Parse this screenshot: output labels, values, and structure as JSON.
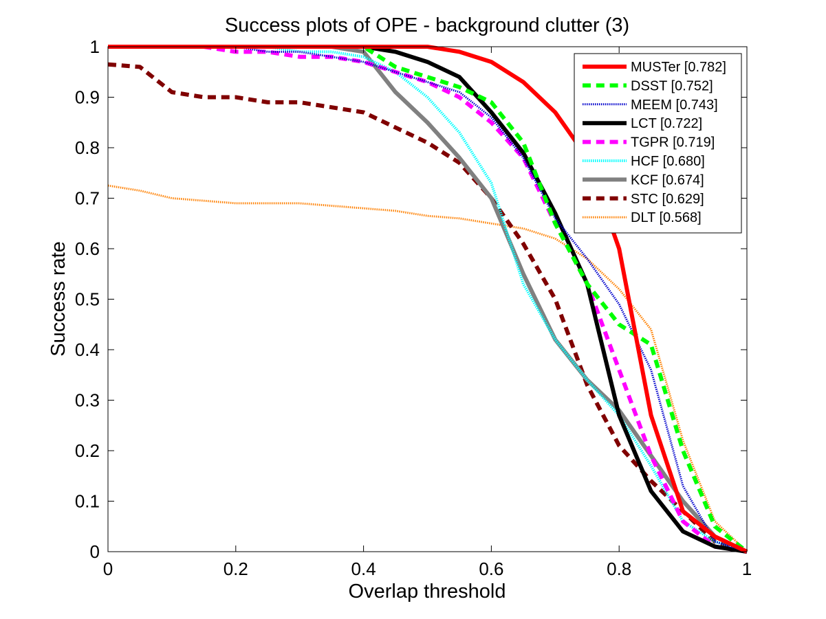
{
  "chart_data": {
    "type": "line",
    "title": "Success plots of OPE - background clutter (3)",
    "xlabel": "Overlap threshold",
    "ylabel": "Success rate",
    "xlim": [
      0,
      1
    ],
    "ylim": [
      0,
      1
    ],
    "grid": false,
    "legend_position": "top-right",
    "x": [
      0,
      0.05,
      0.1,
      0.15,
      0.2,
      0.25,
      0.3,
      0.35,
      0.4,
      0.45,
      0.5,
      0.55,
      0.6,
      0.65,
      0.7,
      0.75,
      0.8,
      0.85,
      0.9,
      0.95,
      1.0
    ],
    "x_ticks": [
      "0",
      "0.2",
      "0.4",
      "0.6",
      "0.8",
      "1"
    ],
    "y_ticks": [
      "0",
      "0.1",
      "0.2",
      "0.3",
      "0.4",
      "0.5",
      "0.6",
      "0.7",
      "0.8",
      "0.9",
      "1"
    ],
    "series": [
      {
        "name": "MUSTer [0.782]",
        "color": "#ff0000",
        "style": "solid",
        "width": 6,
        "values": [
          1.0,
          1.0,
          1.0,
          1.0,
          1.0,
          1.0,
          1.0,
          1.0,
          1.0,
          1.0,
          1.0,
          0.99,
          0.97,
          0.93,
          0.87,
          0.78,
          0.6,
          0.27,
          0.08,
          0.03,
          0.0
        ]
      },
      {
        "name": "DSST [0.752]",
        "color": "#00ff00",
        "style": "dashed",
        "width": 6,
        "values": [
          1.0,
          1.0,
          1.0,
          1.0,
          1.0,
          1.0,
          1.0,
          1.0,
          1.0,
          0.96,
          0.94,
          0.92,
          0.89,
          0.81,
          0.65,
          0.53,
          0.45,
          0.41,
          0.2,
          0.05,
          0.0
        ]
      },
      {
        "name": "MEEM [0.743]",
        "color": "#0000cc",
        "style": "dotted",
        "width": 3,
        "values": [
          1.0,
          1.0,
          1.0,
          1.0,
          1.0,
          0.99,
          0.99,
          0.98,
          0.97,
          0.95,
          0.93,
          0.91,
          0.86,
          0.78,
          0.66,
          0.58,
          0.49,
          0.36,
          0.13,
          0.02,
          0.0
        ]
      },
      {
        "name": "LCT [0.722]",
        "color": "#000000",
        "style": "solid",
        "width": 6,
        "values": [
          1.0,
          1.0,
          1.0,
          1.0,
          1.0,
          1.0,
          1.0,
          1.0,
          1.0,
          0.99,
          0.97,
          0.94,
          0.87,
          0.79,
          0.67,
          0.53,
          0.27,
          0.12,
          0.04,
          0.01,
          0.0
        ]
      },
      {
        "name": "TGPR [0.719]",
        "color": "#ff00ff",
        "style": "dashed",
        "width": 6,
        "values": [
          1.0,
          1.0,
          1.0,
          1.0,
          0.99,
          0.99,
          0.98,
          0.98,
          0.97,
          0.95,
          0.93,
          0.9,
          0.85,
          0.78,
          0.65,
          0.53,
          0.36,
          0.19,
          0.06,
          0.01,
          0.0
        ]
      },
      {
        "name": "HCF [0.680]",
        "color": "#00ffff",
        "style": "dotted",
        "width": 4,
        "values": [
          1.0,
          1.0,
          1.0,
          1.0,
          1.0,
          1.0,
          0.99,
          0.99,
          0.98,
          0.95,
          0.9,
          0.83,
          0.73,
          0.53,
          0.42,
          0.34,
          0.27,
          0.17,
          0.06,
          0.02,
          0.0
        ]
      },
      {
        "name": "KCF [0.674]",
        "color": "#808080",
        "style": "solid",
        "width": 6,
        "values": [
          1.0,
          1.0,
          1.0,
          1.0,
          1.0,
          1.0,
          1.0,
          1.0,
          0.99,
          0.91,
          0.85,
          0.78,
          0.7,
          0.55,
          0.42,
          0.34,
          0.28,
          0.19,
          0.1,
          0.03,
          0.0
        ]
      },
      {
        "name": "STC [0.629]",
        "color": "#800000",
        "style": "dashed",
        "width": 6,
        "values": [
          0.965,
          0.96,
          0.91,
          0.9,
          0.9,
          0.89,
          0.89,
          0.88,
          0.87,
          0.84,
          0.81,
          0.77,
          0.7,
          0.61,
          0.5,
          0.33,
          0.21,
          0.14,
          0.08,
          0.02,
          0.0
        ]
      },
      {
        "name": "DLT [0.568]",
        "color": "#ff8000",
        "style": "dotted",
        "width": 3,
        "values": [
          0.725,
          0.715,
          0.7,
          0.695,
          0.69,
          0.69,
          0.69,
          0.685,
          0.68,
          0.675,
          0.665,
          0.66,
          0.65,
          0.64,
          0.62,
          0.58,
          0.52,
          0.44,
          0.22,
          0.06,
          0.0
        ]
      }
    ]
  }
}
